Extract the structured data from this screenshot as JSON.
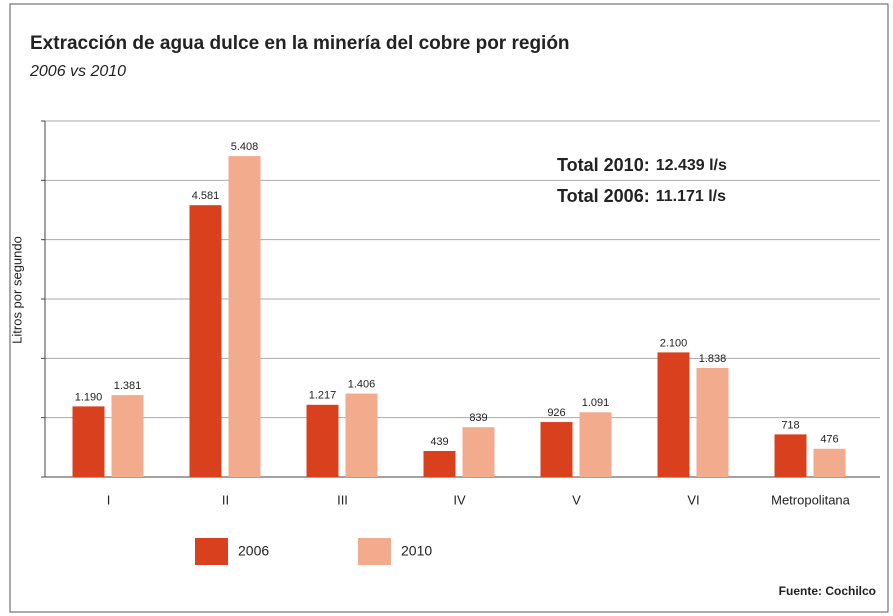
{
  "chart_data": {
    "type": "bar",
    "title": "Extracción de agua dulce en la minería del cobre por región",
    "subtitle": "2006 vs 2010",
    "y_label": "Litros por segundo",
    "categories": [
      "I",
      "II",
      "III",
      "IV",
      "V",
      "VI",
      "Metropolitana"
    ],
    "series": [
      {
        "name": "2006",
        "color": "#d8401e",
        "values": [
          1190,
          4581,
          1217,
          439,
          926,
          2100,
          718
        ],
        "value_labels": [
          "1.190",
          "4.581",
          "1.217",
          "439",
          "926",
          "2.100",
          "718"
        ]
      },
      {
        "name": "2010",
        "color": "#f2ab8d",
        "values": [
          1381,
          5408,
          1406,
          839,
          1091,
          1838,
          476
        ],
        "value_labels": [
          "1.381",
          "5.408",
          "1.406",
          "839",
          "1.091",
          "1.838",
          "476"
        ]
      }
    ],
    "ylim": [
      0,
      6000
    ],
    "yticks": [
      0,
      1000,
      2000,
      3000,
      4000,
      5000,
      6000
    ],
    "grid": true,
    "annotations": [
      {
        "label": "Total 2010:",
        "text": "12.439 l/s"
      },
      {
        "label": "Total 2006:",
        "text": "11.171 l/s"
      }
    ],
    "source": "Fuente: Cochilco"
  }
}
